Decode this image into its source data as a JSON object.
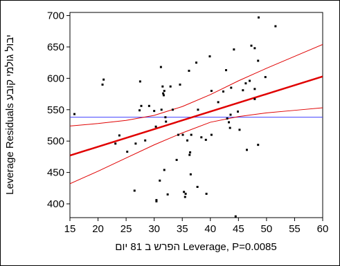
{
  "chart_data": {
    "type": "scatter",
    "xlabel": "הפרש ב 81 יום Leverage, P=0.0085",
    "ylabel": "Leverage Residuals יבול גולמי קובע",
    "xlim": [
      15,
      60
    ],
    "ylim": [
      378,
      705
    ],
    "xticks": [
      "15",
      "20",
      "25",
      "30",
      "35",
      "40",
      "45",
      "50",
      "55",
      "60"
    ],
    "yticks": [
      "400",
      "450",
      "500",
      "550",
      "600",
      "650",
      "700"
    ],
    "grid": false,
    "colors": {
      "fit": "#e00000",
      "mean": "#4040ff",
      "points": "#000000"
    },
    "mean_line": {
      "y": 538
    },
    "fit_line": {
      "x": [
        15,
        60
      ],
      "y": [
        477,
        603
      ]
    },
    "confidence_upper": {
      "x": [
        15,
        20,
        25,
        30,
        35,
        40,
        45,
        50,
        55,
        60
      ],
      "y": [
        524,
        528,
        533,
        541,
        555,
        574,
        596,
        616,
        635,
        654
      ]
    },
    "confidence_lower": {
      "x": [
        15,
        20,
        25,
        30,
        35,
        40,
        45,
        50,
        55,
        60
      ],
      "y": [
        432,
        452,
        473,
        494,
        513,
        530,
        539,
        545,
        549,
        553
      ]
    },
    "points": [
      {
        "x": 15.8,
        "y": 543
      },
      {
        "x": 20.8,
        "y": 590
      },
      {
        "x": 21.0,
        "y": 598
      },
      {
        "x": 23.1,
        "y": 496
      },
      {
        "x": 23.8,
        "y": 509
      },
      {
        "x": 25.2,
        "y": 483
      },
      {
        "x": 26.5,
        "y": 421
      },
      {
        "x": 26.7,
        "y": 496
      },
      {
        "x": 27.4,
        "y": 549
      },
      {
        "x": 27.7,
        "y": 556
      },
      {
        "x": 27.5,
        "y": 595
      },
      {
        "x": 28.4,
        "y": 501
      },
      {
        "x": 29.1,
        "y": 556
      },
      {
        "x": 30.0,
        "y": 548
      },
      {
        "x": 30.3,
        "y": 523
      },
      {
        "x": 30.4,
        "y": 406
      },
      {
        "x": 30.4,
        "y": 404
      },
      {
        "x": 31.0,
        "y": 437
      },
      {
        "x": 31.2,
        "y": 618
      },
      {
        "x": 31.3,
        "y": 550
      },
      {
        "x": 31.5,
        "y": 587
      },
      {
        "x": 31.6,
        "y": 576
      },
      {
        "x": 31.7,
        "y": 573
      },
      {
        "x": 31.8,
        "y": 580
      },
      {
        "x": 31.8,
        "y": 454
      },
      {
        "x": 32.0,
        "y": 538
      },
      {
        "x": 32.1,
        "y": 531
      },
      {
        "x": 32.4,
        "y": 415
      },
      {
        "x": 32.9,
        "y": 587
      },
      {
        "x": 33.3,
        "y": 550
      },
      {
        "x": 34.0,
        "y": 470
      },
      {
        "x": 34.3,
        "y": 510
      },
      {
        "x": 34.6,
        "y": 590
      },
      {
        "x": 35.1,
        "y": 510
      },
      {
        "x": 35.3,
        "y": 419
      },
      {
        "x": 35.5,
        "y": 411
      },
      {
        "x": 35.6,
        "y": 416
      },
      {
        "x": 35.9,
        "y": 501
      },
      {
        "x": 36.2,
        "y": 612
      },
      {
        "x": 36.3,
        "y": 478
      },
      {
        "x": 36.4,
        "y": 482
      },
      {
        "x": 36.5,
        "y": 447
      },
      {
        "x": 36.6,
        "y": 510
      },
      {
        "x": 37.5,
        "y": 625
      },
      {
        "x": 37.7,
        "y": 427
      },
      {
        "x": 37.8,
        "y": 550
      },
      {
        "x": 38.4,
        "y": 506
      },
      {
        "x": 39.2,
        "y": 502
      },
      {
        "x": 39.3,
        "y": 416
      },
      {
        "x": 39.9,
        "y": 635
      },
      {
        "x": 40.2,
        "y": 580
      },
      {
        "x": 40.2,
        "y": 510
      },
      {
        "x": 41.4,
        "y": 562
      },
      {
        "x": 42.3,
        "y": 579
      },
      {
        "x": 42.8,
        "y": 613
      },
      {
        "x": 43.0,
        "y": 536
      },
      {
        "x": 43.3,
        "y": 530
      },
      {
        "x": 43.5,
        "y": 521
      },
      {
        "x": 43.6,
        "y": 542
      },
      {
        "x": 43.7,
        "y": 585
      },
      {
        "x": 44.2,
        "y": 646
      },
      {
        "x": 44.5,
        "y": 380
      },
      {
        "x": 44.9,
        "y": 547
      },
      {
        "x": 45.2,
        "y": 518
      },
      {
        "x": 45.8,
        "y": 581
      },
      {
        "x": 46.3,
        "y": 592
      },
      {
        "x": 46.5,
        "y": 486
      },
      {
        "x": 47.0,
        "y": 596
      },
      {
        "x": 47.3,
        "y": 652
      },
      {
        "x": 47.9,
        "y": 648
      },
      {
        "x": 47.9,
        "y": 583
      },
      {
        "x": 47.9,
        "y": 567
      },
      {
        "x": 48.5,
        "y": 494
      },
      {
        "x": 48.5,
        "y": 628
      },
      {
        "x": 48.6,
        "y": 697
      },
      {
        "x": 49.8,
        "y": 602
      },
      {
        "x": 51.6,
        "y": 683
      }
    ]
  }
}
